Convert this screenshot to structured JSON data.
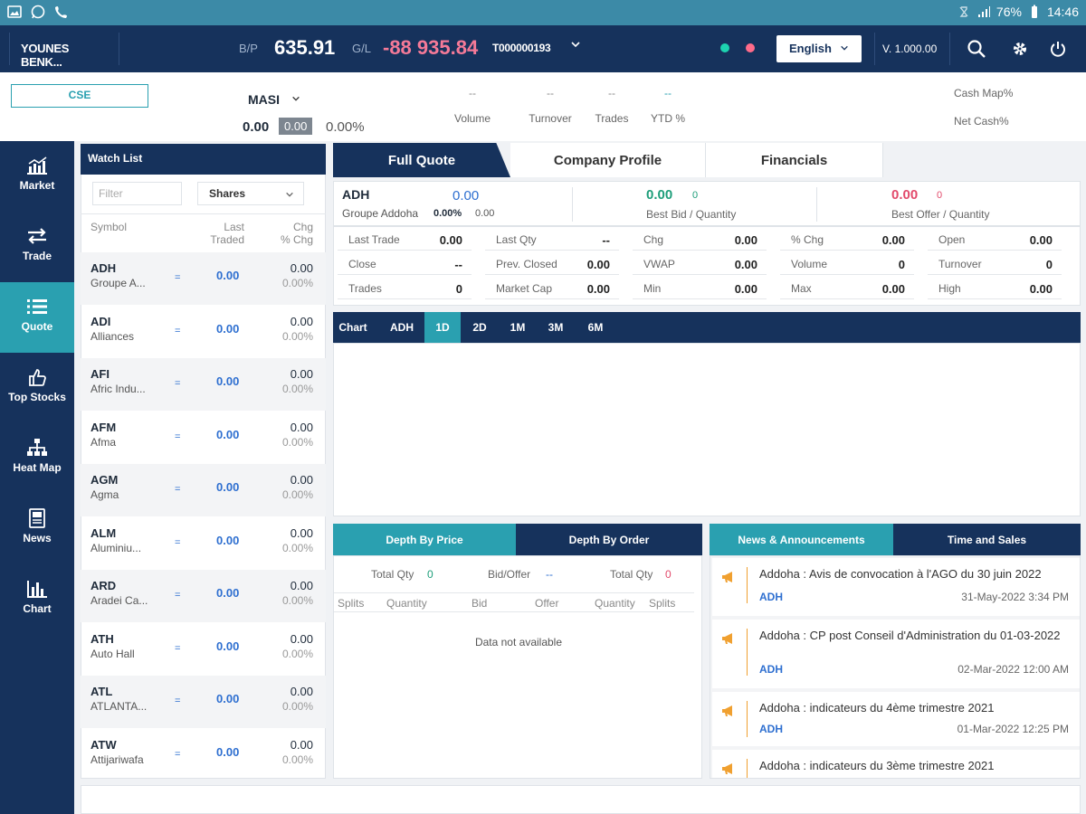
{
  "statusbar": {
    "battery": "76%",
    "time": "14:46"
  },
  "topbar": {
    "user": "YOUNES BENK...",
    "bp_label": "B/P",
    "bp_value": "635.91",
    "gl_label": "G/L",
    "gl_value": "-88 935.84",
    "account": "T000000193",
    "language": "English",
    "version": "V. 1.000.00",
    "colors": {
      "dot1": "#1dd3b0",
      "dot2": "#ff6b8a"
    }
  },
  "indexbar": {
    "exchange": "CSE",
    "index_name": "MASI",
    "index_value": "0.00",
    "index_change": "0.00",
    "index_pct": "0.00%",
    "stats": [
      {
        "value": "--",
        "label": "Volume"
      },
      {
        "value": "--",
        "label": "Turnover"
      },
      {
        "value": "--",
        "label": "Trades"
      },
      {
        "value": "--",
        "label": "YTD %"
      }
    ],
    "cash_map": "Cash Map%",
    "net_cash": "Net Cash%"
  },
  "sidenav": [
    {
      "label": "Market",
      "icon": "market-chart-icon"
    },
    {
      "label": "Trade",
      "icon": "trade-arrows-icon"
    },
    {
      "label": "Quote",
      "icon": "quote-list-icon"
    },
    {
      "label": "Top Stocks",
      "icon": "thumbs-up-icon"
    },
    {
      "label": "Heat Map",
      "icon": "heat-map-icon"
    },
    {
      "label": "News",
      "icon": "news-icon"
    },
    {
      "label": "Chart",
      "icon": "bar-chart-icon"
    }
  ],
  "watchlist": {
    "title": "Watch List",
    "filter_placeholder": "Filter",
    "type": "Shares",
    "col_symbol": "Symbol",
    "col_last1": "Last",
    "col_last2": "Traded",
    "col_chg1": "Chg",
    "col_chg2": "% Chg",
    "rows": [
      {
        "sym": "ADH",
        "name": "Groupe A...",
        "eq": "=",
        "last": "0.00",
        "chg": "0.00",
        "pct": "0.00%"
      },
      {
        "sym": "ADI",
        "name": "Alliances",
        "eq": "=",
        "last": "0.00",
        "chg": "0.00",
        "pct": "0.00%"
      },
      {
        "sym": "AFI",
        "name": "Afric Indu...",
        "eq": "=",
        "last": "0.00",
        "chg": "0.00",
        "pct": "0.00%"
      },
      {
        "sym": "AFM",
        "name": "Afma",
        "eq": "=",
        "last": "0.00",
        "chg": "0.00",
        "pct": "0.00%"
      },
      {
        "sym": "AGM",
        "name": "Agma",
        "eq": "=",
        "last": "0.00",
        "chg": "0.00",
        "pct": "0.00%"
      },
      {
        "sym": "ALM",
        "name": "Aluminiu...",
        "eq": "=",
        "last": "0.00",
        "chg": "0.00",
        "pct": "0.00%"
      },
      {
        "sym": "ARD",
        "name": "Aradei Ca...",
        "eq": "=",
        "last": "0.00",
        "chg": "0.00",
        "pct": "0.00%"
      },
      {
        "sym": "ATH",
        "name": "Auto Hall",
        "eq": "=",
        "last": "0.00",
        "chg": "0.00",
        "pct": "0.00%"
      },
      {
        "sym": "ATL",
        "name": "ATLANTA...",
        "eq": "=",
        "last": "0.00",
        "chg": "0.00",
        "pct": "0.00%"
      },
      {
        "sym": "ATW",
        "name": "Attijariwafa",
        "eq": "=",
        "last": "0.00",
        "chg": "0.00",
        "pct": "0.00%"
      }
    ]
  },
  "tabs": [
    "Full Quote",
    "Company Profile",
    "Financials"
  ],
  "quote": {
    "symbol": "ADH",
    "name": "Groupe Addoha",
    "price": "0.00",
    "pct": "0.00%",
    "chg": "0.00",
    "bid": "0.00",
    "bid_qty": "0",
    "bid_label": "Best Bid / Quantity",
    "offer": "0.00",
    "offer_qty": "0",
    "offer_label": "Best Offer / Quantity",
    "fields": [
      {
        "k": "Last Trade",
        "v": "0.00"
      },
      {
        "k": "Last Qty",
        "v": "--"
      },
      {
        "k": "Chg",
        "v": "0.00"
      },
      {
        "k": "% Chg",
        "v": "0.00"
      },
      {
        "k": "Open",
        "v": "0.00"
      },
      {
        "k": "Close",
        "v": "--"
      },
      {
        "k": "Prev. Closed",
        "v": "0.00"
      },
      {
        "k": "VWAP",
        "v": "0.00"
      },
      {
        "k": "Volume",
        "v": "0"
      },
      {
        "k": "Turnover",
        "v": "0"
      },
      {
        "k": "Trades",
        "v": "0"
      },
      {
        "k": "Market Cap",
        "v": "0.00"
      },
      {
        "k": "Min",
        "v": "0.00"
      },
      {
        "k": "Max",
        "v": "0.00"
      },
      {
        "k": "High",
        "v": "0.00"
      }
    ]
  },
  "chartbar": {
    "label": "Chart",
    "symbol": "ADH",
    "periods": [
      "1D",
      "2D",
      "1M",
      "3M",
      "6M"
    ],
    "active": "1D"
  },
  "depth": {
    "tab_price": "Depth By Price",
    "tab_order": "Depth By Order",
    "total_qty_label": "Total Qty",
    "total_qty_bid": "0",
    "bid_offer_label": "Bid/Offer",
    "bid_offer_value": "--",
    "total_qty_offer": "0",
    "cols": [
      "Splits",
      "Quantity",
      "Bid",
      "Offer",
      "Quantity",
      "Splits"
    ],
    "no_data": "Data not available"
  },
  "news": {
    "tab_news": "News & Announcements",
    "tab_ts": "Time and Sales",
    "items": [
      {
        "title": "Addoha : Avis de convocation à l'AGO du 30 juin 2022",
        "sym": "ADH",
        "date": "31-May-2022 3:34 PM"
      },
      {
        "title": "Addoha : CP post Conseil d'Administration du 01-03-2022",
        "sym": "ADH",
        "date": "02-Mar-2022 12:00 AM"
      },
      {
        "title": "Addoha : indicateurs du 4ème trimestre 2021",
        "sym": "ADH",
        "date": "01-Mar-2022 12:25 PM"
      },
      {
        "title": "Addoha : indicateurs du 3ème trimestre 2021",
        "sym": "",
        "date": ""
      }
    ]
  }
}
